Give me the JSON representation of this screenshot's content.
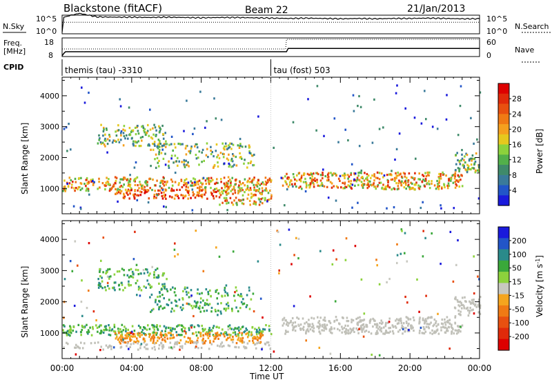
{
  "header": {
    "title": "Blackstone (fitACF)",
    "beam": "Beam 22",
    "date": "21/Jan/2013"
  },
  "strip_labels": {
    "nsky": "N.Sky",
    "nsearch": "N.Search",
    "freq_line1": "Freq.",
    "freq_line2": "[MHz]",
    "nave": "Nave",
    "cpid": "CPID",
    "noise_ticks_left": [
      "10^5",
      "10^0"
    ],
    "noise_ticks_right": [
      "10^5",
      "10^0"
    ],
    "freq_ticks": [
      "18",
      "8"
    ],
    "nave_ticks": [
      "60",
      "0"
    ]
  },
  "cpid_segments": [
    {
      "start_hour": 0.0,
      "label": "themis (tau) -3310"
    },
    {
      "start_hour": 12.0,
      "label": "tau (fost) 503"
    }
  ],
  "colors": {
    "power_scale": [
      "#1a1adc",
      "#2255c8",
      "#3a7a9a",
      "#3f8a6a",
      "#52b04a",
      "#8cd23c",
      "#e6c81e",
      "#f5a01e",
      "#f07a14",
      "#e8500f",
      "#e02a0a",
      "#dd0000"
    ],
    "velocity_scale": [
      "#1a1adc",
      "#2255c8",
      "#2a8a8a",
      "#3aa83a",
      "#8cd23c",
      "#c8c8c0",
      "#f5a51e",
      "#f07a14",
      "#e85010",
      "#e02a0a",
      "#dd0000"
    ],
    "ground_scatter": "#c0c0b8"
  },
  "chart_data": [
    {
      "type": "line",
      "title": "",
      "series": [
        {
          "name": "N.Sky",
          "x": [
            0,
            0.1,
            0.5,
            1,
            2,
            3,
            4,
            5,
            6,
            7,
            8,
            9,
            10,
            11,
            12,
            13,
            14,
            15,
            16,
            17,
            18,
            19,
            20,
            21,
            22,
            23,
            24
          ],
          "y": [
            0.0,
            4.8,
            5.4,
            6.0,
            4.9,
            4.8,
            4.8,
            4.7,
            4.8,
            4.7,
            4.6,
            4.7,
            4.7,
            4.6,
            4.5,
            4.4,
            4.5,
            4.4,
            4.3,
            4.4,
            4.3,
            4.4,
            4.4,
            4.5,
            4.4,
            4.3,
            4.3
          ]
        },
        {
          "name": "N.Search",
          "x": [
            0,
            24
          ],
          "y": [
            3.2,
            3.2
          ]
        }
      ],
      "ylim_log10": [
        0,
        5
      ]
    },
    {
      "type": "line",
      "series": [
        {
          "name": "Freq.",
          "x": [
            0,
            0.1,
            0.2,
            12.9,
            13.0,
            24
          ],
          "y": [
            8,
            9.5,
            10.5,
            10.5,
            12.5,
            12.5
          ]
        },
        {
          "name": "Nave",
          "x": [
            0,
            12.85,
            12.9,
            24
          ],
          "y": [
            25,
            25,
            60,
            60
          ]
        }
      ],
      "ylim_freq": [
        8,
        18
      ],
      "ylim_nave": [
        0,
        60
      ]
    },
    {
      "type": "heatmap",
      "title": "",
      "xlabel": "",
      "ylabel": "Slant Range [km]",
      "colorbar_label": "Power [dB]",
      "colorbar_ticks": [
        "28",
        "24",
        "20",
        "16",
        "12",
        "8",
        "4"
      ],
      "y_ticks": [
        "4000",
        "3000",
        "2000",
        "1000"
      ],
      "xlim_hours": [
        0,
        24
      ],
      "ylim_km": [
        180,
        4600
      ],
      "scatter_regions": [
        {
          "x": [
            0.0,
            12.0
          ],
          "y": [
            950,
            1400
          ],
          "density": 0.85,
          "level": "high"
        },
        {
          "x": [
            3.0,
            9.0
          ],
          "y": [
            700,
            1000
          ],
          "density": 0.9,
          "level": "max"
        },
        {
          "x": [
            9.0,
            12.0
          ],
          "y": [
            500,
            1000
          ],
          "density": 0.8,
          "level": "high"
        },
        {
          "x": [
            2.0,
            6.0
          ],
          "y": [
            2400,
            3100
          ],
          "density": 0.6,
          "level": "mid"
        },
        {
          "x": [
            5.0,
            11.0
          ],
          "y": [
            1700,
            2500
          ],
          "density": 0.45,
          "level": "mid"
        },
        {
          "x": [
            12.6,
            23.0
          ],
          "y": [
            1000,
            1550
          ],
          "density": 0.9,
          "level": "high"
        },
        {
          "x": [
            22.5,
            24.0
          ],
          "y": [
            1550,
            2200
          ],
          "density": 0.85,
          "level": "mid"
        },
        {
          "x": [
            0.0,
            24.0
          ],
          "y": [
            300,
            4400
          ],
          "density": 0.03,
          "level": "low"
        }
      ]
    },
    {
      "type": "heatmap",
      "title": "",
      "xlabel": "Time UT",
      "ylabel": "Slant Range [km]",
      "colorbar_label": "Velocity [m s-1]",
      "colorbar_ticks": [
        "200",
        "100",
        "50",
        "15",
        "-15",
        "-50",
        "-100",
        "-200"
      ],
      "x_ticks": [
        "00:00",
        "04:00",
        "08:00",
        "12:00",
        "16:00",
        "20:00",
        "00:00"
      ],
      "y_ticks": [
        "4000",
        "3000",
        "2000",
        "1000"
      ],
      "xlim_hours": [
        0,
        24
      ],
      "ylim_km": [
        180,
        4600
      ],
      "scatter_regions": [
        {
          "x": [
            0.0,
            12.0
          ],
          "y": [
            950,
            1300
          ],
          "density": 0.8,
          "level": "green"
        },
        {
          "x": [
            3.0,
            11.5
          ],
          "y": [
            700,
            1050
          ],
          "density": 0.9,
          "level": "orange"
        },
        {
          "x": [
            0.0,
            12.0
          ],
          "y": [
            500,
            750
          ],
          "density": 0.5,
          "level": "ground"
        },
        {
          "x": [
            2.0,
            6.0
          ],
          "y": [
            2400,
            3100
          ],
          "density": 0.55,
          "level": "green"
        },
        {
          "x": [
            5.0,
            11.0
          ],
          "y": [
            1700,
            2500
          ],
          "density": 0.4,
          "level": "green"
        },
        {
          "x": [
            12.6,
            23.0
          ],
          "y": [
            1000,
            1550
          ],
          "density": 0.9,
          "level": "ground"
        },
        {
          "x": [
            22.5,
            24.0
          ],
          "y": [
            1550,
            2200
          ],
          "density": 0.85,
          "level": "ground"
        },
        {
          "x": [
            0.0,
            24.0
          ],
          "y": [
            300,
            4400
          ],
          "density": 0.03,
          "level": "mixed"
        }
      ]
    }
  ]
}
